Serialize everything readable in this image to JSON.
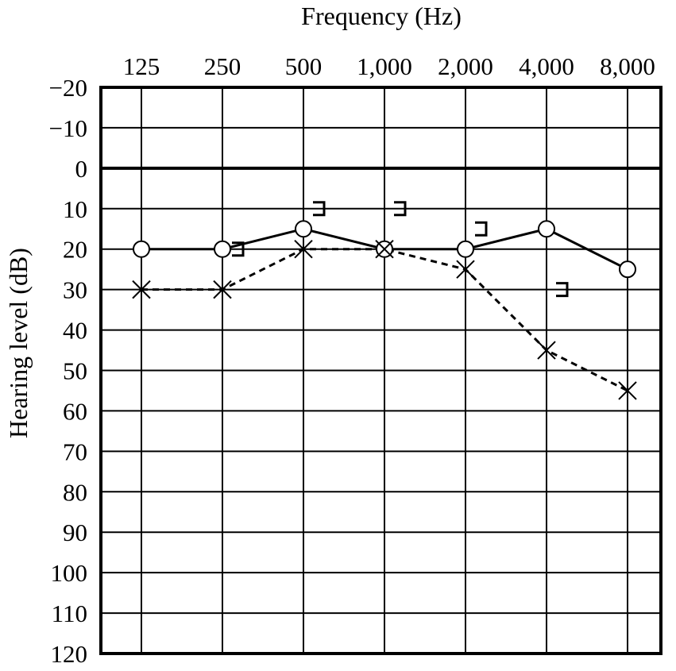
{
  "chart_data": {
    "type": "line",
    "title": "Frequency  (Hz)",
    "xlabel": "Frequency  (Hz)",
    "ylabel": "Hearing level (dB)",
    "x_scale": "log2",
    "categories": [
      "125",
      "250",
      "500",
      "1,000",
      "2,000",
      "4,000",
      "8,000"
    ],
    "x": [
      125,
      250,
      500,
      1000,
      2000,
      4000,
      8000
    ],
    "y_tick_labels": [
      "−20",
      "−10",
      "0",
      "10",
      "20",
      "30",
      "40",
      "50",
      "60",
      "70",
      "80",
      "90",
      "100",
      "110",
      "120"
    ],
    "ylim": [
      -20,
      120
    ],
    "y_inverted": true,
    "grid": true,
    "reference_line_y": 0,
    "series": [
      {
        "marker": "circle",
        "line": "solid",
        "x": [
          125,
          250,
          500,
          1000,
          2000,
          4000,
          8000
        ],
        "values": [
          20,
          20,
          15,
          20,
          20,
          15,
          25
        ]
      },
      {
        "marker": "x",
        "line": "dashed",
        "x": [
          125,
          250,
          500,
          1000,
          2000,
          4000,
          8000
        ],
        "values": [
          30,
          30,
          20,
          20,
          25,
          45,
          55
        ]
      },
      {
        "marker": "bracket",
        "line": "none",
        "x": [
          250,
          500,
          1000,
          2000,
          4000
        ],
        "values": [
          20,
          10,
          10,
          15,
          30
        ]
      }
    ],
    "colors": {
      "ink": "#000000",
      "background": "#ffffff"
    }
  }
}
